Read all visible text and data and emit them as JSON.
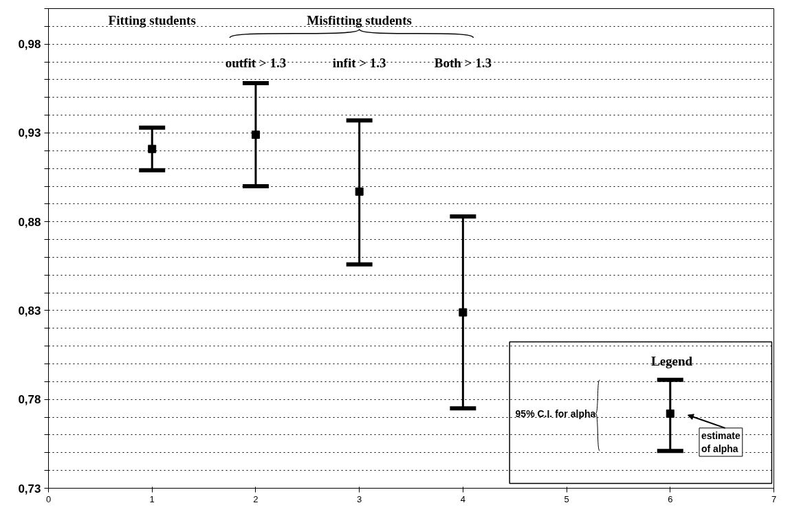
{
  "chart_data": {
    "type": "scatter",
    "x": [
      1,
      2,
      3,
      4
    ],
    "series": [
      {
        "color": "#000000",
        "values": [
          0.921,
          0.929,
          0.897,
          0.829
        ],
        "errors": [
          [
            0.909,
            0.933
          ],
          [
            0.9,
            0.958
          ],
          [
            0.856,
            0.937
          ],
          [
            0.775,
            0.883
          ]
        ]
      },
      {
        "color": "#000000",
        "x": [
          6
        ],
        "values": [
          0.772
        ],
        "errors": [
          [
            0.751,
            0.791
          ]
        ]
      }
    ],
    "xlim": [
      0,
      7
    ],
    "xticks": [
      0,
      1,
      2,
      3,
      4,
      5,
      6,
      7
    ],
    "ylim": [
      0.73,
      1.0
    ],
    "yticks": [
      {
        "value": 0.73,
        "label": "0,73"
      },
      {
        "value": 0.74,
        "label": null
      },
      {
        "value": 0.75,
        "label": null
      },
      {
        "value": 0.76,
        "label": null
      },
      {
        "value": 0.77,
        "label": null
      },
      {
        "value": 0.78,
        "label": "0,78"
      },
      {
        "value": 0.79,
        "label": null
      },
      {
        "value": 0.8,
        "label": null
      },
      {
        "value": 0.81,
        "label": null
      },
      {
        "value": 0.82,
        "label": null
      },
      {
        "value": 0.83,
        "label": "0,83"
      },
      {
        "value": 0.84,
        "label": null
      },
      {
        "value": 0.85,
        "label": null
      },
      {
        "value": 0.86,
        "label": null
      },
      {
        "value": 0.87,
        "label": null
      },
      {
        "value": 0.88,
        "label": "0,88"
      },
      {
        "value": 0.89,
        "label": null
      },
      {
        "value": 0.9,
        "label": null
      },
      {
        "value": 0.91,
        "label": null
      },
      {
        "value": 0.92,
        "label": null
      },
      {
        "value": 0.93,
        "label": "0,93"
      },
      {
        "value": 0.94,
        "label": null
      },
      {
        "value": 0.95,
        "label": null
      },
      {
        "value": 0.96,
        "label": null
      },
      {
        "value": 0.97,
        "label": null
      },
      {
        "value": 0.98,
        "label": "0,98"
      },
      {
        "value": 0.99,
        "label": null
      },
      {
        "value": 1.0,
        "label": null
      }
    ],
    "grid": "y",
    "marker": "square",
    "annotations": [
      "Fitting students",
      "Misfitting students",
      "outfit > 1.3",
      "infit > 1.3",
      "Both > 1.3",
      "Legend",
      "95% C.I. for alpha",
      "estimate of alpha"
    ]
  }
}
